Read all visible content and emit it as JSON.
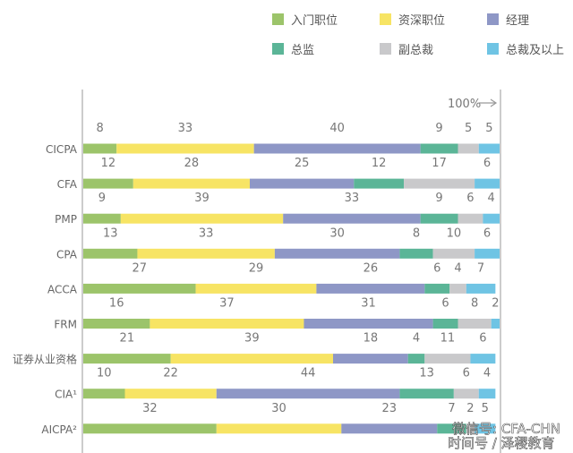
{
  "chart_data": {
    "type": "bar",
    "orientation": "horizontal",
    "stacked": true,
    "categories": [
      "CICPA",
      "CFA",
      "PMP",
      "CPA",
      "ACCA",
      "FRM",
      "证券从业资格",
      "CIA¹",
      "AICPA²"
    ],
    "series": [
      {
        "name": "入门职位",
        "color": "#9cc46a",
        "values": [
          8,
          12,
          9,
          13,
          27,
          16,
          21,
          10,
          32
        ]
      },
      {
        "name": "资深职位",
        "color": "#f7e464",
        "values": [
          33,
          28,
          39,
          33,
          29,
          37,
          39,
          22,
          30
        ]
      },
      {
        "name": "经理",
        "color": "#8e97c6",
        "values": [
          40,
          25,
          33,
          30,
          26,
          31,
          18,
          44,
          23
        ]
      },
      {
        "name": "总监",
        "color": "#5bb597",
        "values": [
          9,
          12,
          9,
          8,
          6,
          6,
          4,
          13,
          7
        ]
      },
      {
        "name": "副总裁",
        "color": "#c9c9cb",
        "values": [
          5,
          17,
          6,
          10,
          4,
          8,
          11,
          6,
          2
        ]
      },
      {
        "name": "总裁及以上",
        "color": "#6fc4e4",
        "values": [
          5,
          6,
          4,
          6,
          7,
          2,
          6,
          4,
          5
        ]
      }
    ],
    "xlim": [
      0,
      100
    ],
    "annotation": "100%",
    "legend_position": "top-right",
    "grid": false
  },
  "watermark": {
    "line1": "微信号: CFA-CHN",
    "line2": "时间号 / 泽稷教育"
  }
}
